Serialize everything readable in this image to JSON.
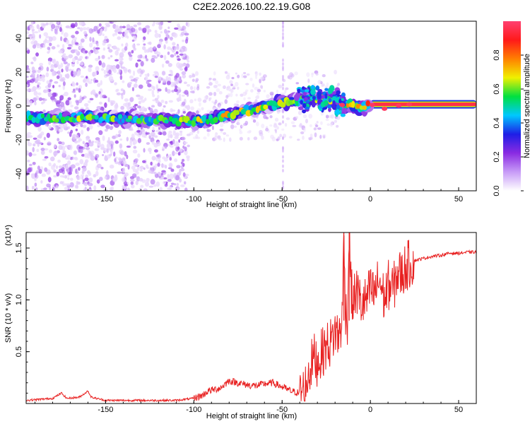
{
  "title": "C2E2.2026.100.22.19.G08",
  "colorbar": {
    "label": "Normalized spectral amplitude",
    "ticks": [
      0.0,
      0.2,
      0.4,
      0.6,
      0.8
    ],
    "tick_labels": [
      "0.0",
      "0.2",
      "0.4",
      "0.6",
      "0.8"
    ],
    "range": [
      0,
      1
    ]
  },
  "chart_data": [
    {
      "type": "heatmap",
      "xlabel": "Height of straight line (km)",
      "ylabel": "Frequency (Hz)",
      "xlim": [
        -195,
        60
      ],
      "ylim": [
        -50,
        50
      ],
      "xticks": [
        -150,
        -100,
        -50,
        0,
        50
      ],
      "yticks": [
        -40,
        -20,
        0,
        20,
        40
      ],
      "colormap": [
        "#ffffff",
        "#c79bf7",
        "#8a2be2",
        "#1e1ee6",
        "#00c8ff",
        "#00e040",
        "#f0f000",
        "#ff8000",
        "#ff1a1a",
        "#ff4070"
      ],
      "ridge": {
        "x": [
          -195,
          -160,
          -120,
          -105,
          -95,
          -80,
          -65,
          -55,
          -45,
          -35,
          -25,
          -20,
          -15,
          -10,
          -5,
          0,
          5,
          10,
          15,
          20,
          60
        ],
        "freq": [
          -7,
          -7,
          -8,
          -9,
          -9,
          -5,
          -2,
          1,
          3,
          4,
          5,
          3,
          0,
          0,
          -1,
          1,
          -1,
          -2,
          0,
          1,
          1
        ],
        "amplitude": [
          0.55,
          0.55,
          0.5,
          0.55,
          0.6,
          0.65,
          0.6,
          0.6,
          0.55,
          0.5,
          0.6,
          0.65,
          0.8,
          0.7,
          0.65,
          0.95,
          0.8,
          0.8,
          0.95,
          0.95,
          0.95
        ]
      },
      "noise_region_x": [
        -195,
        -103
      ]
    },
    {
      "type": "line",
      "xlabel": "Height of straight line (km)",
      "ylabel": "SNR (10 * v/v)",
      "y_multiplier_label": "(x10⁴)",
      "xlim": [
        -195,
        60
      ],
      "ylim": [
        0,
        1.65
      ],
      "xticks": [
        -150,
        -100,
        -50,
        0,
        50
      ],
      "yticks": [
        0.5,
        1.0,
        1.5
      ],
      "ytick_labels": [
        "0.5",
        "1.0",
        "1.5"
      ],
      "color": "#e82020",
      "series": [
        {
          "x": [
            -195,
            -180,
            -175,
            -172,
            -165,
            -160,
            -158,
            -150,
            -130,
            -110,
            -100,
            -95,
            -92,
            -85,
            -80,
            -75,
            -70,
            -65,
            -60,
            -55,
            -50,
            -45,
            -40,
            -37,
            -35,
            -32,
            -30,
            -27,
            -25,
            -22,
            -20,
            -18,
            -16,
            -15,
            -14,
            -13,
            -12,
            -11,
            -10,
            -8,
            -5,
            -2,
            0,
            2,
            5,
            8,
            10,
            13,
            15,
            18,
            20,
            25,
            30,
            35,
            40,
            45,
            50,
            55,
            60
          ],
          "y": [
            0.03,
            0.05,
            0.1,
            0.05,
            0.06,
            0.12,
            0.06,
            0.03,
            0.03,
            0.03,
            0.05,
            0.08,
            0.12,
            0.15,
            0.22,
            0.2,
            0.18,
            0.17,
            0.19,
            0.2,
            0.16,
            0.12,
            0.1,
            0.15,
            0.3,
            0.45,
            0.4,
            0.5,
            0.55,
            0.6,
            0.7,
            0.65,
            0.8,
            1.62,
            0.9,
            0.8,
            1.66,
            1.15,
            0.95,
            1.1,
            0.95,
            1.0,
            1.1,
            1.05,
            1.2,
            1.0,
            1.15,
            1.1,
            1.25,
            1.25,
            1.32,
            1.38,
            1.4,
            1.42,
            1.43,
            1.45,
            1.45,
            1.46,
            1.46
          ]
        }
      ]
    }
  ]
}
